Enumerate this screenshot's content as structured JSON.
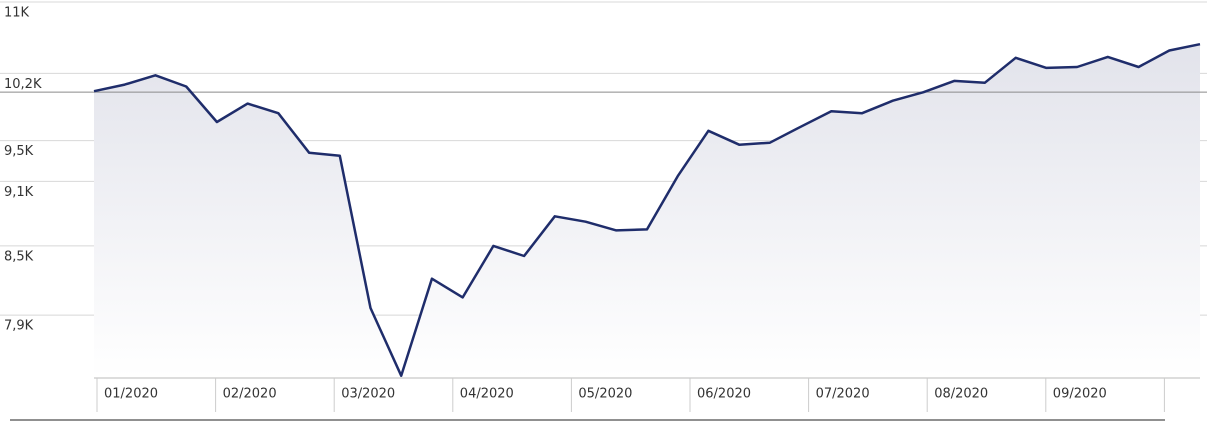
{
  "chart_data": {
    "type": "line",
    "log_scale": true,
    "grid": true,
    "color": "#1f2d6b",
    "reference_line": 10000,
    "ylim": [
      7400,
      11000
    ],
    "yticks": [
      {
        "value": 11000,
        "label": "11K"
      },
      {
        "value": 10200,
        "label": "10,2K"
      },
      {
        "value": 9500,
        "label": "9,5K"
      },
      {
        "value": 9100,
        "label": "9,1K"
      },
      {
        "value": 8500,
        "label": "8,5K"
      },
      {
        "value": 7900,
        "label": "7,9K"
      }
    ],
    "month_labels": [
      "01/2020",
      "02/2020",
      "03/2020",
      "04/2020",
      "05/2020",
      "06/2020",
      "07/2020",
      "08/2020",
      "09/2020"
    ],
    "values": [
      10010,
      10080,
      10180,
      10060,
      9690,
      9880,
      9780,
      9380,
      9350,
      7960,
      7410,
      8210,
      8050,
      8500,
      8410,
      8770,
      8720,
      8640,
      8650,
      9150,
      9600,
      9460,
      9480,
      9640,
      9800,
      9780,
      9910,
      10000,
      10120,
      10100,
      10370,
      10260,
      10270,
      10380,
      10270,
      10450,
      10520
    ]
  }
}
